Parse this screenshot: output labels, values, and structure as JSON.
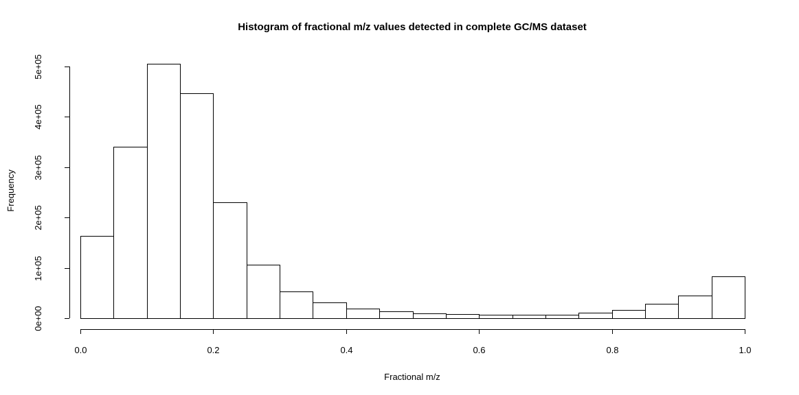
{
  "chart_data": {
    "type": "bar",
    "title": "Histogram of fractional m/z values detected in complete GC/MS dataset",
    "xlabel": "Fractional m/z",
    "ylabel": "Frequency",
    "xlim": [
      0.0,
      1.0
    ],
    "ylim": [
      0,
      500000
    ],
    "x_ticks": [
      0.0,
      0.2,
      0.4,
      0.6,
      0.8,
      1.0
    ],
    "x_tick_labels": [
      "0.0",
      "0.2",
      "0.4",
      "0.6",
      "0.8",
      "1.0"
    ],
    "y_ticks": [
      0,
      100000,
      200000,
      300000,
      400000,
      500000
    ],
    "y_tick_labels": [
      "0e+00",
      "1e+05",
      "2e+05",
      "3e+05",
      "4e+05",
      "5e+05"
    ],
    "bin_edges": [
      0.0,
      0.05,
      0.1,
      0.15,
      0.2,
      0.25,
      0.3,
      0.35,
      0.4,
      0.45,
      0.5,
      0.55,
      0.6,
      0.65,
      0.7,
      0.75,
      0.8,
      0.85,
      0.9,
      0.95,
      1.0
    ],
    "values": [
      164000,
      340000,
      506000,
      447000,
      230000,
      106000,
      53000,
      31000,
      19000,
      13000,
      9500,
      8000,
      6500,
      6500,
      6500,
      10500,
      16500,
      29000,
      45000,
      83000
    ],
    "grid": false,
    "bar_fill": "#ffffff",
    "bar_stroke": "#000000"
  }
}
